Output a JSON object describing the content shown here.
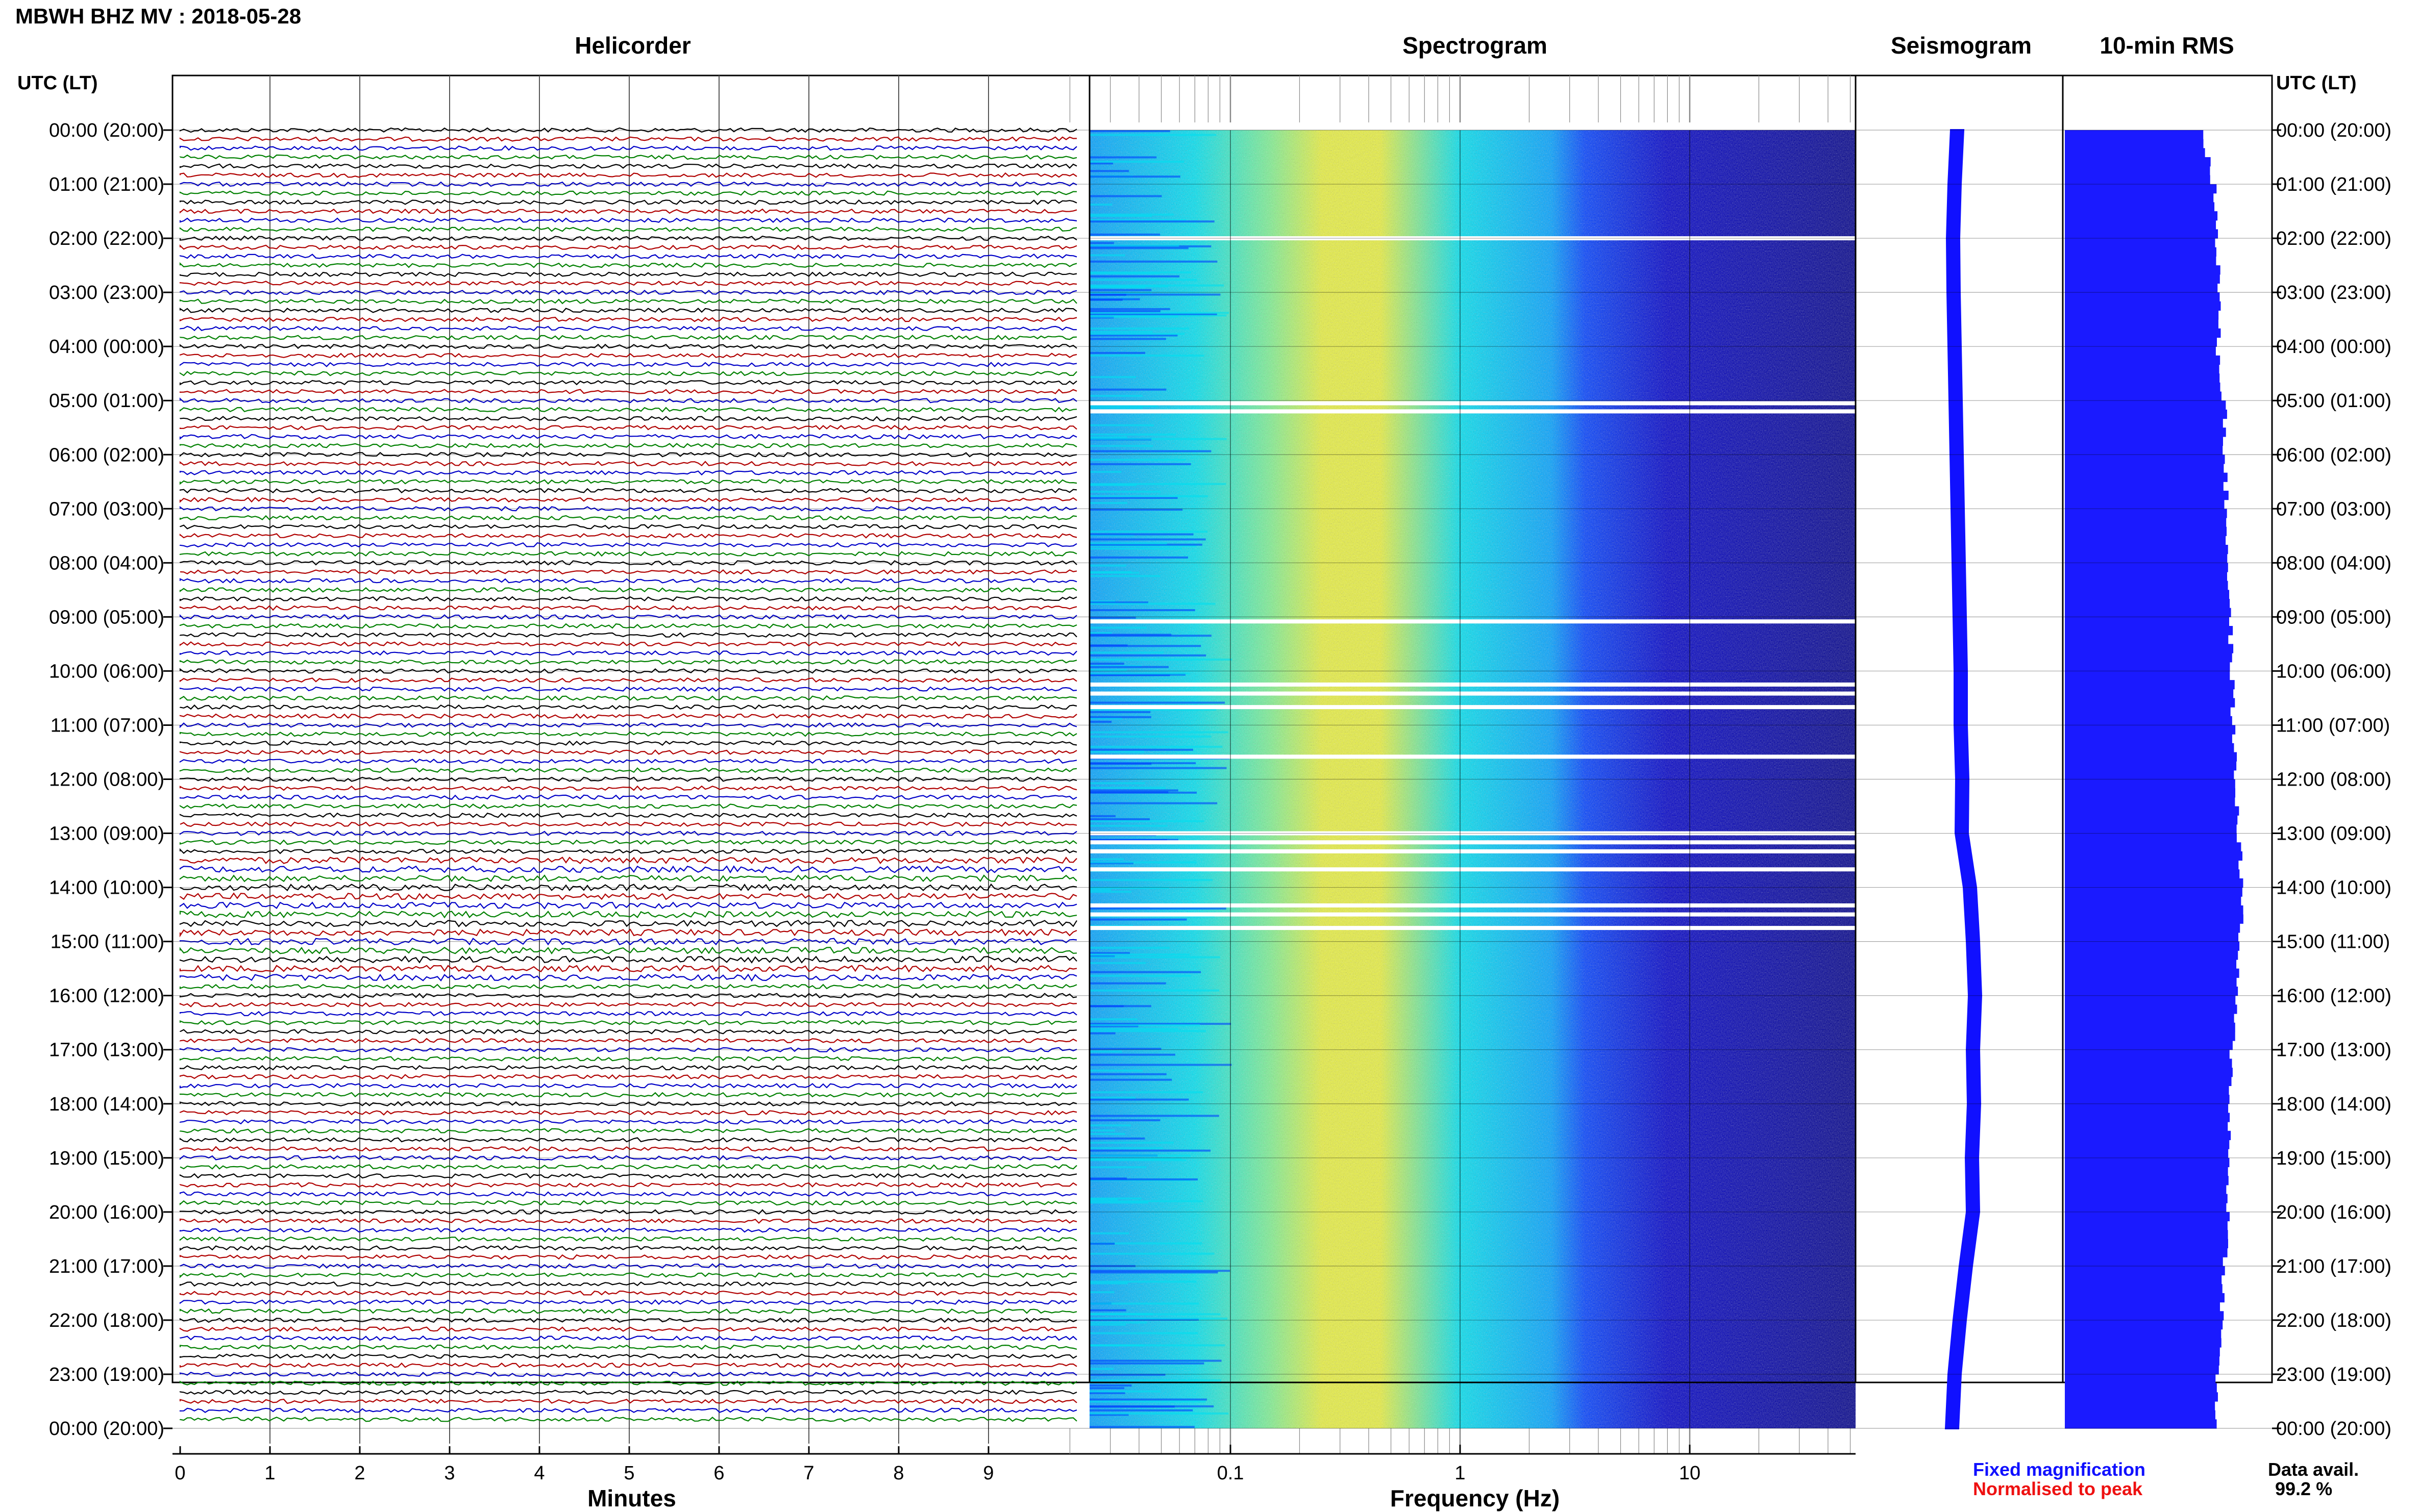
{
  "title": "MBWH BHZ MV : 2018-05-28",
  "panels": {
    "helicorder": "Helicorder",
    "spectrogram": "Spectrogram",
    "seismogram": "Seismogram",
    "rms": "10-min RMS"
  },
  "time_axis": {
    "label": "UTC (LT)",
    "ticks": [
      "00:00 (20:00)",
      "01:00 (21:00)",
      "02:00 (22:00)",
      "03:00 (23:00)",
      "04:00 (00:00)",
      "05:00 (01:00)",
      "06:00 (02:00)",
      "07:00 (03:00)",
      "08:00 (04:00)",
      "09:00 (05:00)",
      "10:00 (06:00)",
      "11:00 (07:00)",
      "12:00 (08:00)",
      "13:00 (09:00)",
      "14:00 (10:00)",
      "15:00 (11:00)",
      "16:00 (12:00)",
      "17:00 (13:00)",
      "18:00 (14:00)",
      "19:00 (15:00)",
      "20:00 (16:00)",
      "21:00 (17:00)",
      "22:00 (18:00)",
      "23:00 (19:00)",
      "00:00 (20:00)"
    ]
  },
  "legend": {
    "fixed": "Fixed magnification",
    "normalised": "Normalised to peak"
  },
  "data_availability": {
    "label": "Data avail.",
    "value": "99.2 %"
  },
  "colors": {
    "trace_cycle": [
      "#000000",
      "#b00000",
      "#0000c8",
      "#008000"
    ],
    "spectrogram_colormap": [
      "#00008c",
      "#0000c8",
      "#0040ff",
      "#00a0ff",
      "#00e0f0",
      "#80f090",
      "#e8f040"
    ],
    "rms_bar": "#1a1aff",
    "seismogram_trace": "#1010ff"
  },
  "chart_data": [
    {
      "type": "line",
      "panel": "Helicorder",
      "xlabel": "Minutes",
      "x_ticks": [
        "0",
        "1",
        "2",
        "3",
        "4",
        "5",
        "6",
        "7",
        "8",
        "9"
      ],
      "xlim": [
        0,
        10
      ],
      "traces": 144,
      "trace_minutes": 10
    },
    {
      "type": "heatmap",
      "panel": "Spectrogram",
      "xlabel": "Frequency (Hz)",
      "x_scale": "log",
      "x_ticks": [
        "0.1",
        "1",
        "10"
      ],
      "xlim": [
        0.02,
        50
      ],
      "peak_frequency_hz": 0.25,
      "rolloff_frequency_hz": 2.5,
      "gaps_utc": [
        "02:00",
        "05:03",
        "05:12",
        "09:05",
        "10:15",
        "10:25",
        "10:40",
        "11:35",
        "13:00",
        "13:10",
        "13:20",
        "13:40",
        "14:20",
        "14:30",
        "14:45"
      ]
    },
    {
      "type": "line",
      "panel": "Seismogram",
      "series": [
        {
          "name": "Fixed magnification",
          "t_hours": [
            0,
            1,
            2,
            3,
            4,
            5,
            6,
            7,
            8,
            9,
            10,
            11,
            12,
            13,
            14,
            15,
            16,
            17,
            18,
            19,
            20,
            21,
            22,
            23,
            24
          ],
          "value": [
            0.05,
            0.0,
            -0.03,
            -0.02,
            0.0,
            0.02,
            0.04,
            0.06,
            0.08,
            0.1,
            0.12,
            0.12,
            0.15,
            0.14,
            0.3,
            0.36,
            0.4,
            0.36,
            0.38,
            0.34,
            0.36,
            0.22,
            0.1,
            0.0,
            -0.05
          ]
        }
      ]
    },
    {
      "type": "bar",
      "panel": "10-min RMS",
      "t_hours": [
        0,
        1,
        2,
        3,
        4,
        5,
        6,
        7,
        8,
        9,
        10,
        11,
        12,
        13,
        14,
        15,
        16,
        17,
        18,
        19,
        20,
        21,
        22,
        23,
        24
      ],
      "values": [
        0.78,
        0.84,
        0.86,
        0.87,
        0.86,
        0.9,
        0.9,
        0.91,
        0.92,
        0.93,
        0.94,
        0.95,
        0.96,
        0.98,
        1.0,
        0.98,
        0.96,
        0.94,
        0.93,
        0.92,
        0.92,
        0.9,
        0.88,
        0.86,
        0.84
      ],
      "ylim": [
        0,
        1.12
      ]
    }
  ]
}
